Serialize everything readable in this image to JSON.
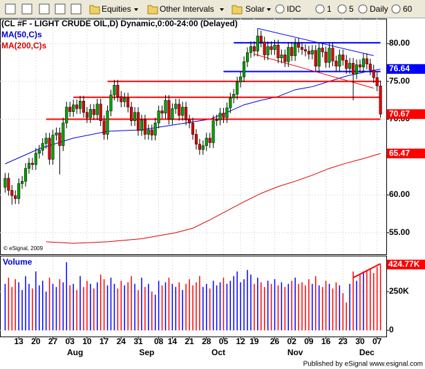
{
  "toolbar": {
    "items": [
      "Equities",
      "Other Intervals",
      "Solar",
      "IDC",
      "1",
      "5",
      "Daily",
      "60"
    ]
  },
  "chart_data": {
    "type": "candlestick",
    "title": "(CL #F - LIGHT CRUDE OIL,D) Dynamic,0:00-24:00 (Delayed)",
    "copyright": "© eSignal, 2009",
    "xlim": [
      -1.5,
      111.7
    ],
    "xticks": [
      {
        "value": 4,
        "label": "13"
      },
      {
        "value": 9,
        "label": "20"
      },
      {
        "value": 14,
        "label": "27"
      },
      {
        "value": 19,
        "label": "03"
      },
      {
        "value": 24,
        "label": "10"
      },
      {
        "value": 29,
        "label": "17"
      },
      {
        "value": 34,
        "label": "24"
      },
      {
        "value": 39,
        "label": "31"
      },
      {
        "value": 45,
        "label": "08"
      },
      {
        "value": 49,
        "label": "14"
      },
      {
        "value": 54,
        "label": "21"
      },
      {
        "value": 59,
        "label": "28"
      },
      {
        "value": 64,
        "label": "05"
      },
      {
        "value": 69,
        "label": "12"
      },
      {
        "value": 73,
        "label": "19"
      },
      {
        "value": 79,
        "label": "26"
      },
      {
        "value": 84,
        "label": "02"
      },
      {
        "value": 89,
        "label": "09"
      },
      {
        "value": 94,
        "label": "16"
      },
      {
        "value": 99,
        "label": "23"
      },
      {
        "value": 104,
        "label": "30"
      },
      {
        "value": 109,
        "label": "07"
      }
    ],
    "month_labels": [
      {
        "value": 20.5,
        "label": "Aug"
      },
      {
        "value": 41.5,
        "label": "Sep"
      },
      {
        "value": 62.5,
        "label": "Oct"
      },
      {
        "value": 85,
        "label": "Nov"
      },
      {
        "value": 106,
        "label": "Dec"
      }
    ],
    "ylim": [
      52.15,
      83.29
    ],
    "yticks": [
      {
        "value": 55,
        "label": "55.00"
      },
      {
        "value": 60,
        "label": "60.00"
      },
      {
        "value": 70,
        "label": "70.00"
      },
      {
        "value": 75,
        "label": "75.00"
      },
      {
        "value": 80,
        "label": "80.00"
      }
    ],
    "grid": true,
    "up_color": "#00a000",
    "down_color": "#e00000",
    "open": [
      61.0,
      62.2,
      60.6,
      59.9,
      59.5,
      61.5,
      61.8,
      63.5,
      64.2,
      64.0,
      65.5,
      65.9,
      66.8,
      67.5,
      64.7,
      67.9,
      68.2,
      66.5,
      69.5,
      71.6,
      71.0,
      71.9,
      71.4,
      72.4,
      70.9,
      70.2,
      71.3,
      70.6,
      72.0,
      69.8,
      68.0,
      71.1,
      73.2,
      74.5,
      73.0,
      72.3,
      72.8,
      71.6,
      69.8,
      70.9,
      68.5,
      69.9,
      68.0,
      68.6,
      67.9,
      69.5,
      71.1,
      70.8,
      72.5,
      70.0,
      71.4,
      72.0,
      70.5,
      71.6,
      69.9,
      69.5,
      68.0,
      66.7,
      66.0,
      66.5,
      67.5,
      66.9,
      69.8,
      69.9,
      70.8,
      70.2,
      71.5,
      72.8,
      73.3,
      74.9,
      75.6,
      77.6,
      78.8,
      79.6,
      79.0,
      81.0,
      80.2,
      78.5,
      79.6,
      79.2,
      79.8,
      78.1,
      78.5,
      77.6,
      79.5,
      78.4,
      80.0,
      79.5,
      79.2,
      79.0,
      78.6,
      79.1,
      77.0,
      79.4,
      78.9,
      77.5,
      79.4,
      77.7,
      77.0,
      78.5,
      77.8,
      76.7,
      77.4,
      76.0,
      77.2,
      76.9,
      78.0,
      77.3,
      76.5,
      75.5,
      74.4
    ],
    "high": [
      62.9,
      62.9,
      61.3,
      60.6,
      62.2,
      62.5,
      64.2,
      64.9,
      64.9,
      66.2,
      66.6,
      67.5,
      68.2,
      68.2,
      68.6,
      68.9,
      68.9,
      70.2,
      72.3,
      72.3,
      72.6,
      72.6,
      73.1,
      73.1,
      71.6,
      72.0,
      72.0,
      72.7,
      72.7,
      70.5,
      71.8,
      73.9,
      75.2,
      75.2,
      73.7,
      73.5,
      73.5,
      72.3,
      71.6,
      71.6,
      70.6,
      70.6,
      69.3,
      69.3,
      70.2,
      71.8,
      71.8,
      73.2,
      73.2,
      72.1,
      72.7,
      72.7,
      72.3,
      72.3,
      70.6,
      70.2,
      68.7,
      67.4,
      67.2,
      68.2,
      68.2,
      70.5,
      70.6,
      71.5,
      71.5,
      72.2,
      73.5,
      74.0,
      75.6,
      76.3,
      78.3,
      79.5,
      80.3,
      80.3,
      82.0,
      81.7,
      80.9,
      80.3,
      80.3,
      80.5,
      80.5,
      79.2,
      79.2,
      80.2,
      80.2,
      80.7,
      80.7,
      80.2,
      79.9,
      79.7,
      79.8,
      79.8,
      80.1,
      80.1,
      79.6,
      80.1,
      80.1,
      78.4,
      79.2,
      79.2,
      78.5,
      78.1,
      78.1,
      77.9,
      77.9,
      78.7,
      78.7,
      78.0,
      77.2,
      76.2,
      75.1
    ],
    "low": [
      60.3,
      59.9,
      58.7,
      58.8,
      58.8,
      60.8,
      61.1,
      62.8,
      63.3,
      63.3,
      64.8,
      65.2,
      66.1,
      64.0,
      64.0,
      67.2,
      62.7,
      65.8,
      68.8,
      70.3,
      70.3,
      70.7,
      70.7,
      70.2,
      69.5,
      69.5,
      69.9,
      69.9,
      69.1,
      67.3,
      67.3,
      70.4,
      72.5,
      72.3,
      71.6,
      71.6,
      70.9,
      69.1,
      69.1,
      67.8,
      67.8,
      67.3,
      67.3,
      67.2,
      67.2,
      68.8,
      70.1,
      70.1,
      69.3,
      69.3,
      70.7,
      69.8,
      69.8,
      69.2,
      68.8,
      67.3,
      66.0,
      65.3,
      65.3,
      65.8,
      66.2,
      66.2,
      69.1,
      69.2,
      69.5,
      69.5,
      70.8,
      72.1,
      72.6,
      74.2,
      74.9,
      76.9,
      78.1,
      78.3,
      78.3,
      79.5,
      77.8,
      77.8,
      78.5,
      78.5,
      77.4,
      77.4,
      76.9,
      76.9,
      77.7,
      77.7,
      78.8,
      78.5,
      78.3,
      77.9,
      77.9,
      76.3,
      76.3,
      78.2,
      76.8,
      76.8,
      77.0,
      76.3,
      76.3,
      77.1,
      76.0,
      76.0,
      72.5,
      75.3,
      76.2,
      76.2,
      76.6,
      75.8,
      74.8,
      73.7,
      70.2
    ],
    "close": [
      62.2,
      60.6,
      59.9,
      59.5,
      61.5,
      61.8,
      63.5,
      64.2,
      64.0,
      65.5,
      65.9,
      66.8,
      67.5,
      64.7,
      67.9,
      68.2,
      66.5,
      69.5,
      71.6,
      71.0,
      71.9,
      71.4,
      72.4,
      70.9,
      70.2,
      71.3,
      70.6,
      72.0,
      69.8,
      68.0,
      71.1,
      73.2,
      74.5,
      73.0,
      72.3,
      72.8,
      71.6,
      69.8,
      70.9,
      68.5,
      69.9,
      68.0,
      68.6,
      67.9,
      69.5,
      71.1,
      70.8,
      72.5,
      70.0,
      71.4,
      72.0,
      70.5,
      71.6,
      69.9,
      69.5,
      68.0,
      66.7,
      66.0,
      66.5,
      67.5,
      66.9,
      69.8,
      69.9,
      70.8,
      70.2,
      71.5,
      72.8,
      73.3,
      74.9,
      75.6,
      77.6,
      78.8,
      79.6,
      79.0,
      81.0,
      80.2,
      78.5,
      79.6,
      79.2,
      79.8,
      78.1,
      78.5,
      77.6,
      79.5,
      78.4,
      80.0,
      79.5,
      79.2,
      79.0,
      78.6,
      79.1,
      77.0,
      79.4,
      78.9,
      77.5,
      79.4,
      77.7,
      77.0,
      78.5,
      77.8,
      76.7,
      77.4,
      76.0,
      77.2,
      76.9,
      78.0,
      77.3,
      76.5,
      75.5,
      74.4,
      70.67
    ],
    "series": [
      {
        "name": "MA(50,C)s",
        "color": "#0000cc",
        "x": [
          0,
          10,
          20,
          30,
          40,
          50,
          60,
          65,
          70,
          75,
          80,
          85,
          90,
          95,
          100,
          105,
          110
        ],
        "values": [
          64.1,
          66.1,
          67.5,
          68.4,
          68.6,
          69.3,
          70.0,
          70.9,
          71.9,
          72.5,
          73.0,
          73.9,
          74.3,
          75.0,
          75.7,
          76.2,
          76.64
        ]
      },
      {
        "name": "MA(200,C)s",
        "color": "#dd0000",
        "x": [
          12,
          20,
          30,
          40,
          50,
          55,
          60,
          65,
          70,
          75,
          80,
          85,
          90,
          95,
          100,
          105,
          110
        ],
        "values": [
          53.8,
          53.6,
          53.8,
          54.2,
          55.0,
          55.6,
          56.7,
          57.9,
          59.1,
          60.2,
          61.1,
          61.8,
          62.6,
          63.5,
          64.2,
          64.8,
          65.47
        ]
      }
    ],
    "drawn_lines": [
      {
        "color": "#ff0000",
        "x": [
          30,
          110
        ],
        "values": [
          75.0,
          75.0
        ]
      },
      {
        "color": "#ff0000",
        "x": [
          20,
          110
        ],
        "values": [
          72.9,
          72.9
        ]
      },
      {
        "color": "#ff0000",
        "x": [
          12,
          110
        ],
        "values": [
          70.0,
          70.0
        ]
      },
      {
        "color": "#0000ff",
        "x": [
          67,
          110
        ],
        "values": [
          80.1,
          80.1
        ]
      },
      {
        "color": "#0000ff",
        "x": [
          64,
          110
        ],
        "values": [
          76.3,
          76.3
        ]
      },
      {
        "color": "#0000ff",
        "x": [
          74,
          108
        ],
        "values": [
          82.0,
          78.4
        ]
      },
      {
        "color": "#ff0000",
        "x": [
          73,
          108
        ],
        "values": [
          78.6,
          74.1
        ]
      }
    ],
    "price_labels": [
      {
        "value": 76.64,
        "color": "#0000ff"
      },
      {
        "value": 70.67,
        "color": "#ff0000"
      },
      {
        "value": 65.47,
        "color": "#ff0000"
      }
    ],
    "volume": {
      "title": "Volume",
      "ylim": [
        -40000,
        473000
      ],
      "yticks": [
        0,
        {
          "value": 250000,
          "label": "250K"
        }
      ],
      "up_color": "#0000ff",
      "down_color": "#ff0000",
      "values": [
        300000,
        340000,
        280000,
        330000,
        310000,
        260000,
        350000,
        300000,
        270000,
        380000,
        290000,
        320000,
        250000,
        340000,
        300000,
        280000,
        330000,
        310000,
        440000,
        290000,
        300000,
        260000,
        350000,
        280000,
        320000,
        300000,
        270000,
        310000,
        360000,
        330000,
        290000,
        340000,
        300000,
        270000,
        320000,
        290000,
        310000,
        350000,
        300000,
        260000,
        340000,
        280000,
        300000,
        250000,
        230000,
        320000,
        290000,
        310000,
        340000,
        300000,
        280000,
        310000,
        260000,
        300000,
        330000,
        290000,
        310000,
        350000,
        280000,
        300000,
        270000,
        320000,
        290000,
        310000,
        340000,
        300000,
        320000,
        350000,
        380000,
        310000,
        330000,
        390000,
        360000,
        300000,
        340000,
        310000,
        280000,
        320000,
        300000,
        330000,
        290000,
        310000,
        280000,
        300000,
        320000,
        340000,
        300000,
        310000,
        290000,
        330000,
        300000,
        350000,
        290000,
        280000,
        320000,
        300000,
        270000,
        310000,
        290000,
        240000,
        180000,
        300000,
        380000,
        320000,
        360000,
        380000,
        390000,
        400000,
        370000,
        410000,
        424770
      ],
      "last_label": {
        "value": 424770,
        "label": "424.77K"
      },
      "trend": {
        "color": "#ff0000",
        "x": [
          102,
          110
        ],
        "values": [
          340000,
          430000
        ]
      }
    }
  },
  "footer": "Published by eSignal www.esignal.com"
}
